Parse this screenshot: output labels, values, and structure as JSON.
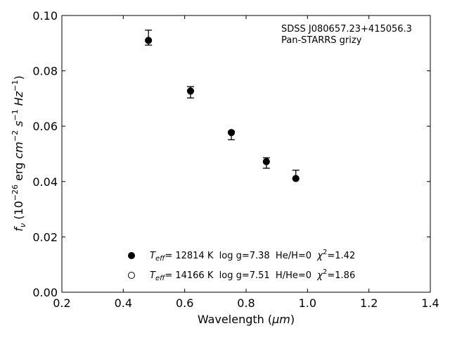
{
  "chart_data": {
    "type": "scatter",
    "xlabel_main": "Wavelength (",
    "xlabel_unit": "μm",
    "xlabel_close": ")",
    "ylabel_prefix": "f",
    "ylabel_sub": "ν",
    "ylabel_open": " (10",
    "ylabel_exp": "−26",
    "ylabel_mid": " erg ",
    "ylabel_cm": "cm",
    "ylabel_cm_exp": "−2",
    "ylabel_s": " s",
    "ylabel_s_exp": "−1",
    "ylabel_hz": " Hz",
    "ylabel_hz_exp": "−1",
    "ylabel_close": ")",
    "xlim": [
      0.2,
      1.4
    ],
    "ylim": [
      0.0,
      0.1
    ],
    "x_ticks": [
      0.2,
      0.4,
      0.6,
      0.8,
      1.0,
      1.2,
      1.4
    ],
    "x_tick_labels": [
      "0.2",
      "0.4",
      "0.6",
      "0.8",
      "1.0",
      "1.2",
      "1.4"
    ],
    "y_ticks": [
      0.0,
      0.02,
      0.04,
      0.06,
      0.08,
      0.1
    ],
    "y_tick_labels": [
      "0.00",
      "0.02",
      "0.04",
      "0.06",
      "0.08",
      "0.10"
    ],
    "annotation_line1": "SDSS J080657.23+415056.3",
    "annotation_line2": "Pan-STARRS grizy",
    "observed": [
      {
        "x": 0.482,
        "y": 0.0918,
        "yerr_low": 0.0893,
        "yerr_high": 0.0947
      },
      {
        "x": 0.619,
        "y": 0.0733,
        "yerr_low": 0.0702,
        "yerr_high": 0.0743
      },
      {
        "x": 0.752,
        "y": 0.0581,
        "yerr_low": 0.0551,
        "yerr_high": 0.0582
      },
      {
        "x": 0.866,
        "y": 0.0478,
        "yerr_low": 0.0448,
        "yerr_high": 0.0486
      },
      {
        "x": 0.962,
        "y": 0.0415,
        "yerr_low": 0.041,
        "yerr_high": 0.0441
      }
    ],
    "series": [
      {
        "marker": "filled-circle",
        "x": [
          0.482,
          0.619,
          0.752,
          0.866,
          0.962
        ],
        "y": [
          0.091,
          0.0727,
          0.0577,
          0.0472,
          0.0411
        ],
        "legend_teff": "T",
        "legend_teff_sub": "eff",
        "legend_rest": "= 12814 K  log g=7.38  He/H=0  ",
        "legend_chi": "χ",
        "legend_chi_exp": "2",
        "legend_chi_val": "=1.42"
      },
      {
        "marker": "open-circle",
        "x": [
          0.482,
          0.619,
          0.752,
          0.866,
          0.962
        ],
        "y": [
          0.091,
          0.0727,
          0.0577,
          0.0472,
          0.0411
        ],
        "legend_teff": "T",
        "legend_teff_sub": "eff",
        "legend_rest": "= 14166 K  log g=7.51  H/He=0  ",
        "legend_chi": "χ",
        "legend_chi_exp": "2",
        "legend_chi_val": "=1.86"
      }
    ],
    "legend_placement": "bottom-center",
    "grid": false
  }
}
